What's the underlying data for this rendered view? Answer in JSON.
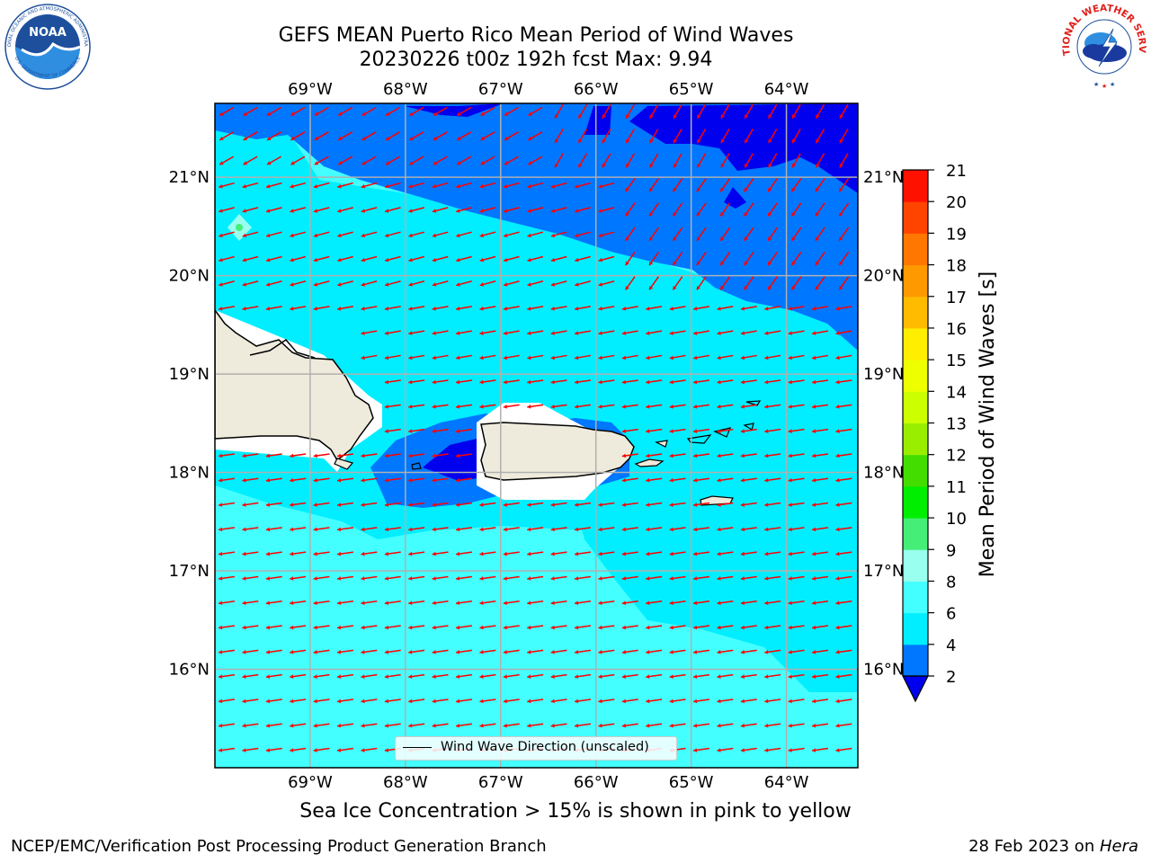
{
  "header": {
    "title_line1": "GEFS MEAN Puerto Rico Mean Period of Wind Waves",
    "title_line2": "20230226 t00z 192h fcst   Max: 9.94"
  },
  "logos": {
    "noara_text": "NOAA",
    "noaa_ring_text": "NATIONAL OCEANIC AND ATMOSPHERIC ADMINISTRATION",
    "noaa_ring_bottom": "U.S. DEPARTMENT OF COMMERCE",
    "nws_ring_text": "NATIONAL WEATHER SERVICE"
  },
  "map": {
    "lon_labels": [
      "69°W",
      "68°W",
      "67°W",
      "66°W",
      "65°W",
      "64°W"
    ],
    "lat_labels": [
      "21°N",
      "20°N",
      "19°N",
      "18°N",
      "17°N",
      "16°N"
    ],
    "lon_range": [
      -70.0,
      -63.25
    ],
    "lat_range": [
      15.0,
      21.75
    ],
    "legend_label": "Wind Wave Direction (unscaled)",
    "arrow_color": "#ff0000",
    "land_color": "#efebdc"
  },
  "colorbar": {
    "label": "Mean Period of Wind Waves [s]",
    "ticks": [
      "2",
      "4",
      "6",
      "8",
      "9",
      "10",
      "11",
      "12",
      "13",
      "14",
      "15",
      "16",
      "17",
      "18",
      "19",
      "20",
      "21"
    ],
    "colors": [
      "#0000ee",
      "#0077ff",
      "#00eeff",
      "#44ffff",
      "#99ffee",
      "#44ee77",
      "#00ee00",
      "#44dd00",
      "#99ee00",
      "#ccff00",
      "#eeff00",
      "#ffee00",
      "#ffbb00",
      "#ff9900",
      "#ff7700",
      "#ff4400",
      "#ff1100",
      "#ff0000"
    ],
    "under_color": "#0000ee"
  },
  "notes": {
    "sea_ice": "Sea Ice Concentration > 15% is shown in pink to yellow"
  },
  "footer": {
    "left": "NCEP/EMC/Verification Post Processing Product Generation Branch",
    "right_date": "28 Feb 2023 on ",
    "right_host": "Hera"
  }
}
